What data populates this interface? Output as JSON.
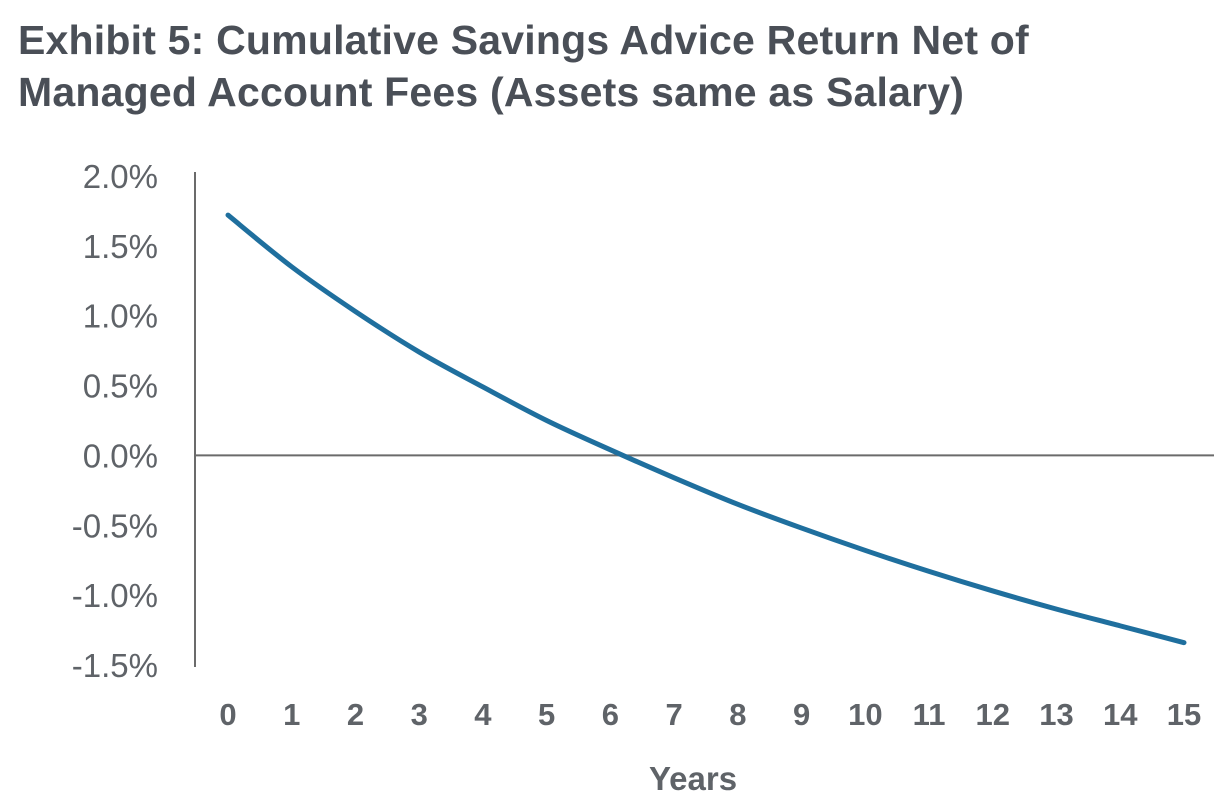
{
  "chart_data": {
    "type": "line",
    "title_line1": "Exhibit 5: Cumulative Savings Advice Return Net of",
    "title_line2": "Managed Account Fees (Assets same as Salary)",
    "xlabel": "Years",
    "ylabel": "",
    "x": [
      0,
      1,
      2,
      3,
      4,
      5,
      6,
      7,
      8,
      9,
      10,
      11,
      12,
      13,
      14,
      15
    ],
    "x_tick_labels": [
      "0",
      "1",
      "2",
      "3",
      "4",
      "5",
      "6",
      "7",
      "8",
      "9",
      "10",
      "11",
      "12",
      "13",
      "14",
      "15"
    ],
    "y_tick_values": [
      2.0,
      1.5,
      1.0,
      0.5,
      0.0,
      -0.5,
      -1.0,
      -1.5
    ],
    "y_tick_labels": [
      "2.0%",
      "1.5%",
      "1.0%",
      "0.5%",
      "0.0%",
      "-0.5%",
      "-1.0%",
      "-1.5%"
    ],
    "ylim": [
      -1.5,
      2.0
    ],
    "grid": false,
    "legend": "none",
    "series": [
      {
        "color": "#1f6f9e",
        "values": [
          1.72,
          1.35,
          1.03,
          0.74,
          0.49,
          0.25,
          0.04,
          -0.16,
          -0.35,
          -0.52,
          -0.68,
          -0.83,
          -0.97,
          -1.1,
          -1.22,
          -1.34
        ]
      }
    ],
    "axis_color": "#6b6b6b",
    "text_color": "#5f6368"
  }
}
